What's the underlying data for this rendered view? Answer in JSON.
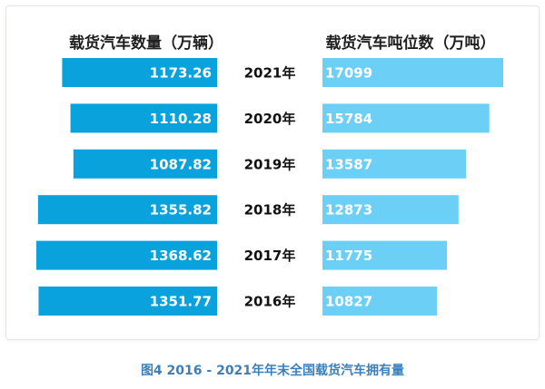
{
  "chart_data": {
    "type": "bar",
    "categories": [
      "2021年",
      "2020年",
      "2019年",
      "2018年",
      "2017年",
      "2016年"
    ],
    "series": [
      {
        "name": "载货汽车数量（万辆）",
        "values": [
          1173.26,
          1110.28,
          1087.82,
          1355.82,
          1368.62,
          1351.77
        ],
        "value_labels": [
          "1173.26",
          "1110.28",
          "1087.82",
          "1355.82",
          "1368.62",
          "1351.77"
        ],
        "color": "#0aa2dc",
        "direction": "left"
      },
      {
        "name": "载货汽车吨位数（万吨）",
        "values": [
          17099,
          15784,
          13587,
          12873,
          11775,
          10827
        ],
        "value_labels": [
          "17099",
          "15784",
          "13587",
          "12873",
          "11775",
          "10827"
        ],
        "color": "#6ccff6",
        "direction": "right"
      }
    ],
    "caption": "图4 2016 - 2021年年末全国载货汽车拥有量"
  }
}
